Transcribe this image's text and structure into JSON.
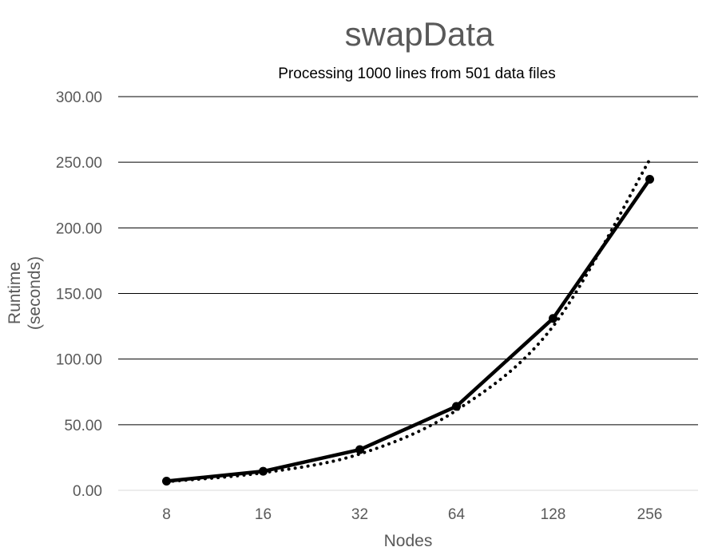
{
  "chart_data": {
    "type": "line",
    "title": "swapData",
    "subtitle": "Processing 1000 lines from 501 data files",
    "xlabel": "Nodes",
    "ylabel_lines": [
      "Runtime",
      "(seconds)"
    ],
    "categories": [
      "8",
      "16",
      "32",
      "64",
      "128",
      "256"
    ],
    "series": [
      {
        "values": [
          7.0,
          14.5,
          31.0,
          64.0,
          131.0,
          237.0
        ]
      }
    ],
    "trendline": {
      "style": "dotted",
      "kind": "exponential",
      "values": [
        6.6,
        13.4,
        27.7,
        61.0,
        125.0,
        252.0
      ]
    },
    "yticks": [
      "0.00",
      "50.00",
      "100.00",
      "150.00",
      "200.00",
      "250.00",
      "300.00"
    ],
    "ylim": [
      0,
      300
    ],
    "grid": true,
    "legend": "none",
    "colors": {
      "series": "#000000",
      "gridline": "#000000",
      "text": "#595959"
    }
  }
}
